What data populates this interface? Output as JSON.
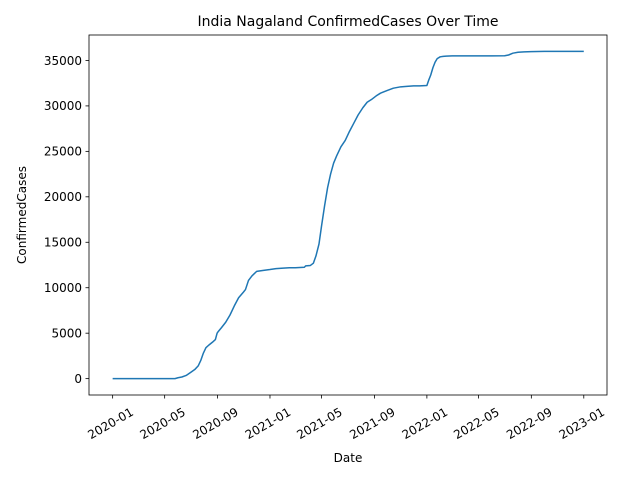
{
  "chart_data": {
    "type": "line",
    "title": "India Nagaland ConfirmedCases Over Time",
    "xlabel": "Date",
    "ylabel": "ConfirmedCases",
    "xlim": [
      "2019-11-07",
      "2023-02-24"
    ],
    "ylim": [
      -1800,
      37800
    ],
    "x_ticks": [
      "2020-01",
      "2020-05",
      "2020-09",
      "2021-01",
      "2021-05",
      "2021-09",
      "2022-01",
      "2022-05",
      "2022-09",
      "2023-01"
    ],
    "y_ticks": [
      0,
      5000,
      10000,
      15000,
      20000,
      25000,
      30000,
      35000
    ],
    "grid": false,
    "legend": "none",
    "series": [
      {
        "color": "#1f77b4",
        "x": [
          "2020-01-01",
          "2020-04-01",
          "2020-05-25",
          "2020-06-01",
          "2020-06-10",
          "2020-06-20",
          "2020-07-01",
          "2020-07-10",
          "2020-07-18",
          "2020-07-24",
          "2020-07-30",
          "2020-08-05",
          "2020-08-12",
          "2020-08-20",
          "2020-08-27",
          "2020-08-31",
          "2020-09-03",
          "2020-09-10",
          "2020-09-20",
          "2020-09-30",
          "2020-10-10",
          "2020-10-20",
          "2020-10-31",
          "2020-11-05",
          "2020-11-12",
          "2020-11-20",
          "2020-12-01",
          "2020-12-15",
          "2021-01-01",
          "2021-01-15",
          "2021-02-01",
          "2021-02-15",
          "2021-03-01",
          "2021-03-22",
          "2021-03-25",
          "2021-04-05",
          "2021-04-12",
          "2021-04-18",
          "2021-04-25",
          "2021-05-01",
          "2021-05-08",
          "2021-05-15",
          "2021-05-22",
          "2021-05-29",
          "2021-06-05",
          "2021-06-15",
          "2021-06-25",
          "2021-07-05",
          "2021-07-15",
          "2021-07-25",
          "2021-08-05",
          "2021-08-15",
          "2021-08-25",
          "2021-09-05",
          "2021-09-15",
          "2021-10-01",
          "2021-10-15",
          "2021-11-01",
          "2021-11-15",
          "2021-12-01",
          "2021-12-15",
          "2022-01-01",
          "2022-01-05",
          "2022-01-10",
          "2022-01-15",
          "2022-01-20",
          "2022-01-25",
          "2022-02-01",
          "2022-02-08",
          "2022-02-15",
          "2022-03-01",
          "2022-04-01",
          "2022-05-01",
          "2022-06-01",
          "2022-07-01",
          "2022-07-10",
          "2022-07-20",
          "2022-08-01",
          "2022-08-15",
          "2022-09-01",
          "2022-10-01",
          "2022-11-01",
          "2022-12-01",
          "2023-01-01"
        ],
        "y": [
          0,
          0,
          0,
          100,
          180,
          350,
          700,
          1000,
          1400,
          2000,
          2800,
          3400,
          3700,
          4000,
          4300,
          5000,
          5200,
          5600,
          6200,
          7000,
          8000,
          8900,
          9500,
          9800,
          10800,
          11300,
          11800,
          11900,
          12000,
          12100,
          12150,
          12200,
          12200,
          12250,
          12400,
          12450,
          12700,
          13500,
          14800,
          16800,
          19000,
          21000,
          22500,
          23700,
          24500,
          25500,
          26200,
          27200,
          28100,
          29000,
          29800,
          30400,
          30700,
          31100,
          31400,
          31700,
          31950,
          32100,
          32150,
          32200,
          32200,
          32250,
          32800,
          33400,
          34200,
          34800,
          35200,
          35400,
          35450,
          35480,
          35500,
          35500,
          35500,
          35500,
          35520,
          35600,
          35800,
          35900,
          35950,
          35970,
          36000,
          36000,
          36000,
          36000
        ]
      }
    ]
  }
}
